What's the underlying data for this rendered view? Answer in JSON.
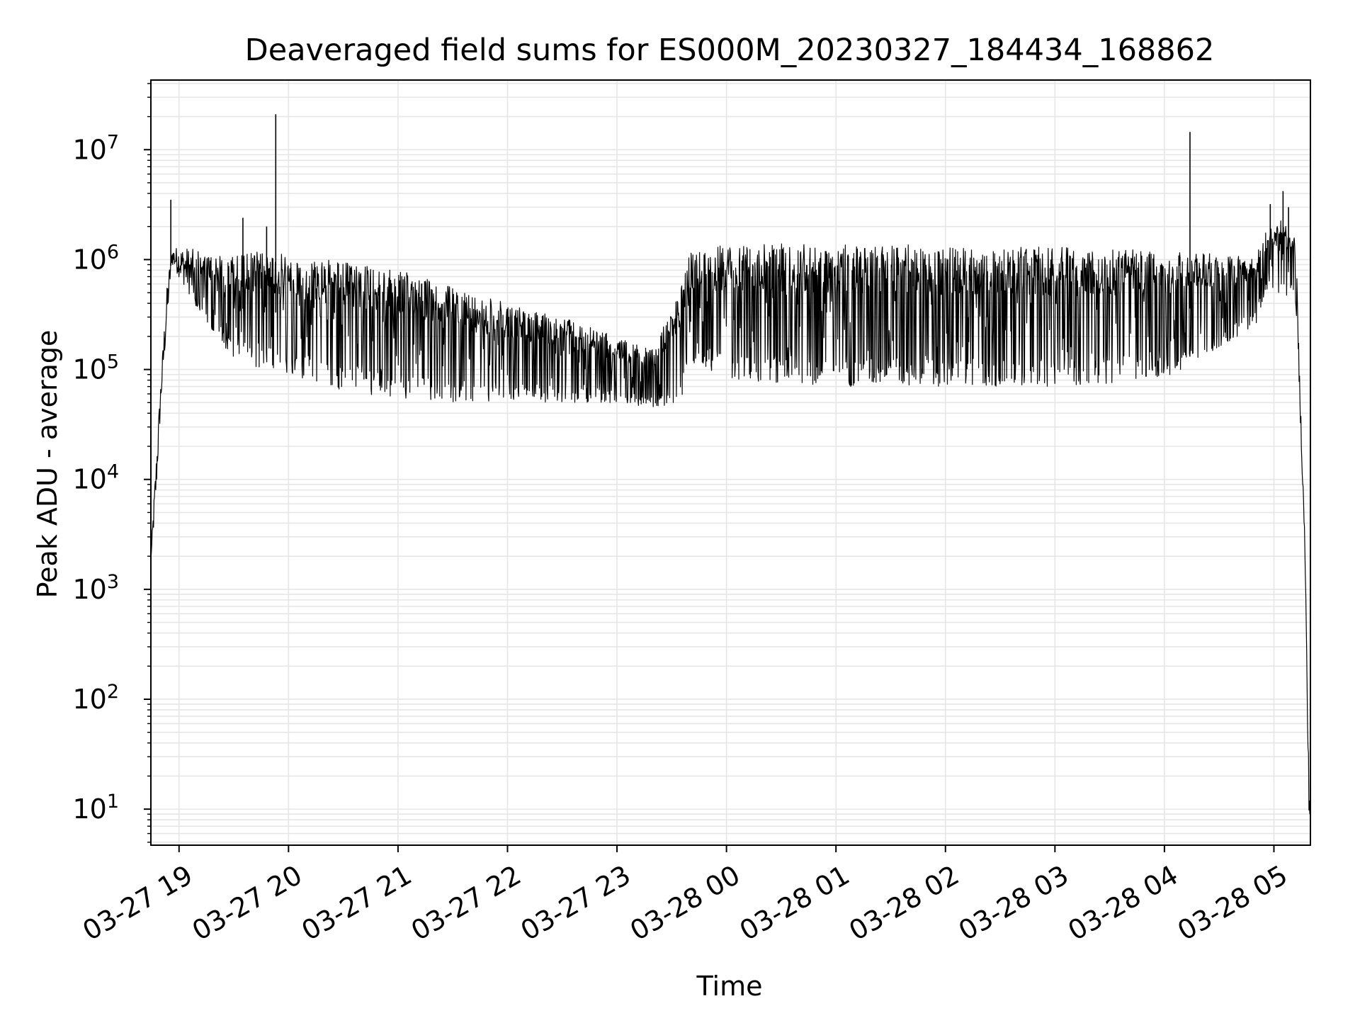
{
  "chart_data": {
    "type": "line",
    "title": "Deaveraged field sums for ES000M_20230327_184434_168862",
    "xlabel": "Time",
    "ylabel": "Peak ADU - average",
    "x_type": "datetime",
    "y_scale": "log",
    "xlim": [
      "2023-03-27T18:44:34",
      "2023-03-28T05:20:00"
    ],
    "ylim": [
      4.7,
      43000000
    ],
    "grid": true,
    "x_ticks": [
      "03-27 19",
      "03-27 20",
      "03-27 21",
      "03-27 22",
      "03-27 23",
      "03-28 00",
      "03-28 01",
      "03-28 02",
      "03-28 03",
      "03-28 04",
      "03-28 05"
    ],
    "x_tick_times": [
      "2023-03-27T19:00:00",
      "2023-03-27T20:00:00",
      "2023-03-27T21:00:00",
      "2023-03-27T22:00:00",
      "2023-03-27T23:00:00",
      "2023-03-28T00:00:00",
      "2023-03-28T01:00:00",
      "2023-03-28T02:00:00",
      "2023-03-28T03:00:00",
      "2023-03-28T04:00:00",
      "2023-03-28T05:00:00"
    ],
    "y_ticks": [
      {
        "value": 10,
        "base": "10",
        "exp": "1"
      },
      {
        "value": 100,
        "base": "10",
        "exp": "2"
      },
      {
        "value": 1000,
        "base": "10",
        "exp": "3"
      },
      {
        "value": 10000,
        "base": "10",
        "exp": "4"
      },
      {
        "value": 100000,
        "base": "10",
        "exp": "5"
      },
      {
        "value": 1000000,
        "base": "10",
        "exp": "6"
      },
      {
        "value": 10000000,
        "base": "10",
        "exp": "7"
      }
    ],
    "line_color": "#000000",
    "grid_color": "#e6e6e6",
    "series": [
      {
        "envelope": [
          {
            "t": "2023-03-27T18:44:34",
            "high": 2000,
            "low": 1800
          },
          {
            "t": "2023-03-27T18:47:00",
            "high": 12000,
            "low": 5000
          },
          {
            "t": "2023-03-27T18:50:00",
            "high": 80000,
            "low": 45000
          },
          {
            "t": "2023-03-27T18:53:00",
            "high": 500000,
            "low": 200000
          },
          {
            "t": "2023-03-27T18:56:00",
            "high": 1300000,
            "low": 900000
          },
          {
            "t": "2023-03-27T19:05:00",
            "high": 1300000,
            "low": 500000
          },
          {
            "t": "2023-03-27T19:15:00",
            "high": 1100000,
            "low": 250000
          },
          {
            "t": "2023-03-27T19:30:00",
            "high": 1100000,
            "low": 120000
          },
          {
            "t": "2023-03-27T19:45:00",
            "high": 1200000,
            "low": 100000
          },
          {
            "t": "2023-03-27T20:00:00",
            "high": 1100000,
            "low": 90000
          },
          {
            "t": "2023-03-27T20:20:00",
            "high": 1000000,
            "low": 70000
          },
          {
            "t": "2023-03-27T20:40:00",
            "high": 900000,
            "low": 60000
          },
          {
            "t": "2023-03-27T21:00:00",
            "high": 800000,
            "low": 55000
          },
          {
            "t": "2023-03-27T21:20:00",
            "high": 650000,
            "low": 50000
          },
          {
            "t": "2023-03-27T21:40:00",
            "high": 500000,
            "low": 50000
          },
          {
            "t": "2023-03-27T22:00:00",
            "high": 400000,
            "low": 50000
          },
          {
            "t": "2023-03-27T22:30:00",
            "high": 300000,
            "low": 50000
          },
          {
            "t": "2023-03-27T23:00:00",
            "high": 200000,
            "low": 50000
          },
          {
            "t": "2023-03-27T23:20:00",
            "high": 150000,
            "low": 45000
          },
          {
            "t": "2023-03-27T23:35:00",
            "high": 600000,
            "low": 50000
          },
          {
            "t": "2023-03-27T23:40:00",
            "high": 1200000,
            "low": 120000
          },
          {
            "t": "2023-03-28T00:00:00",
            "high": 1400000,
            "low": 80000
          },
          {
            "t": "2023-03-28T01:00:00",
            "high": 1400000,
            "low": 70000
          },
          {
            "t": "2023-03-28T02:00:00",
            "high": 1350000,
            "low": 70000
          },
          {
            "t": "2023-03-28T03:00:00",
            "high": 1300000,
            "low": 70000
          },
          {
            "t": "2023-03-28T04:00:00",
            "high": 1200000,
            "low": 80000
          },
          {
            "t": "2023-03-28T04:50:00",
            "high": 1100000,
            "low": 250000
          },
          {
            "t": "2023-03-28T04:55:00",
            "high": 1800000,
            "low": 500000
          },
          {
            "t": "2023-03-28T05:05:00",
            "high": 2500000,
            "low": 500000
          },
          {
            "t": "2023-03-28T05:12:00",
            "high": 1500000,
            "low": 400000
          },
          {
            "t": "2023-03-28T05:14:00",
            "high": 100000,
            "low": 60000
          },
          {
            "t": "2023-03-28T05:17:00",
            "high": 3000,
            "low": 2000
          },
          {
            "t": "2023-03-28T05:19:00",
            "high": 30,
            "low": 10
          },
          {
            "t": "2023-03-28T05:19:40",
            "high": 9,
            "low": 9
          }
        ],
        "spikes": [
          {
            "t": "2023-03-27T18:55:30",
            "value": 3500000
          },
          {
            "t": "2023-03-27T19:35:00",
            "value": 2400000
          },
          {
            "t": "2023-03-27T19:53:00",
            "value": 21000000
          },
          {
            "t": "2023-03-27T19:48:00",
            "value": 2000000
          },
          {
            "t": "2023-03-28T04:14:00",
            "value": 14500000
          },
          {
            "t": "2023-03-28T04:58:00",
            "value": 3200000
          },
          {
            "t": "2023-03-28T05:05:00",
            "value": 4200000
          },
          {
            "t": "2023-03-28T05:08:00",
            "value": 3000000
          }
        ]
      }
    ]
  }
}
